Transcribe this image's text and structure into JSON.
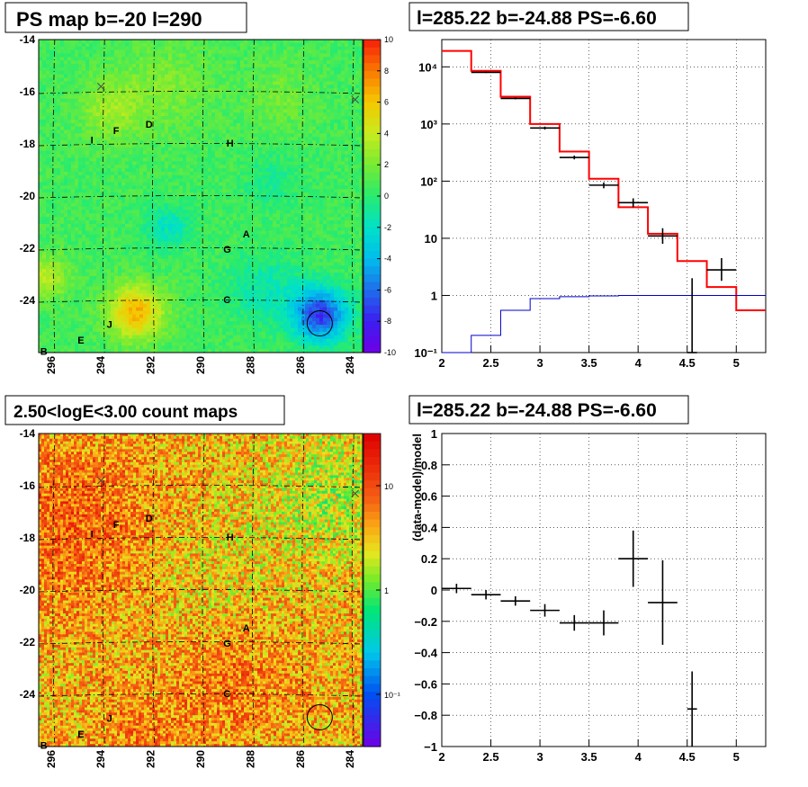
{
  "panels": {
    "ps_map": {
      "title": "PS map b=-20 l=290",
      "colorbar_ticks": [
        "10",
        "8",
        "6",
        "4",
        "2",
        "0",
        "-2",
        "-4",
        "-6",
        "-8",
        "-10"
      ],
      "y_ticks": [
        "-14",
        "-16",
        "-18",
        "-20",
        "-22",
        "-24"
      ],
      "x_ticks": [
        "296",
        "294",
        "292",
        "290",
        "288",
        "286",
        "284"
      ]
    },
    "spectrum": {
      "title": "l=285.22 b=-24.88 PS=-6.60"
    },
    "count_map": {
      "title": "2.50<logE<3.00 count maps",
      "colorbar_ticks": [
        "10",
        "1",
        "10⁻¹"
      ],
      "y_ticks": [
        "-14",
        "-16",
        "-18",
        "-20",
        "-22",
        "-24"
      ],
      "x_ticks": [
        "296",
        "294",
        "292",
        "290",
        "288",
        "286",
        "284"
      ]
    },
    "residual": {
      "title": "l=285.22 b=-24.88 PS=-6.60"
    }
  },
  "source_labels": [
    "A",
    "B",
    "C",
    "D",
    "E",
    "F",
    "G",
    "H",
    "I",
    "J"
  ],
  "colors": {
    "model": "#ff0000",
    "background": "#0000cc",
    "data": "#000000"
  },
  "chart_data": [
    {
      "type": "heatmap",
      "name": "PS map",
      "title": "PS map b=-20 l=290",
      "xlim": [
        296.5,
        283.5
      ],
      "ylim": [
        -26,
        -14
      ],
      "zlim": [
        -10,
        10
      ],
      "xlabel": "",
      "ylabel": ""
    },
    {
      "type": "line",
      "title": "l=285.22 b=-24.88 PS=-6.60",
      "xlim": [
        2,
        5.3
      ],
      "ylim": [
        0.1,
        30000
      ],
      "yscale": "log",
      "series": [
        {
          "style": "step",
          "edges": [
            2,
            2.3,
            2.6,
            2.9,
            3.2,
            3.5,
            3.8,
            4.1,
            4.4,
            4.7,
            5.0,
            5.3
          ],
          "values": [
            19000,
            8500,
            3000,
            1000,
            330,
            110,
            35,
            12,
            4,
            1.4,
            0.55
          ]
        },
        {
          "style": "step",
          "edges": [
            2,
            2.3,
            2.6,
            2.9,
            3.2,
            3.5,
            3.8,
            4.1,
            4.4,
            4.7,
            5.0,
            5.3
          ],
          "values": [
            0.1,
            0.2,
            0.55,
            0.88,
            0.95,
            0.98,
            1.0,
            1.0,
            1.0,
            1.0,
            1.0
          ]
        },
        {
          "style": "points",
          "x": [
            2.45,
            2.75,
            3.05,
            3.35,
            3.65,
            3.95,
            4.25,
            4.55,
            4.85
          ],
          "xerr": [
            0.15,
            0.15,
            0.15,
            0.15,
            0.15,
            0.15,
            0.15,
            0.05,
            0.15
          ],
          "y": [
            8000,
            2800,
            850,
            260,
            85,
            42,
            11,
            0.1,
            2.8
          ],
          "ylo": [
            7800,
            2700,
            800,
            240,
            75,
            35,
            8,
            0.1,
            1.8
          ],
          "yhi": [
            8200,
            2900,
            900,
            280,
            95,
            50,
            15,
            2,
            4.5
          ]
        }
      ]
    },
    {
      "type": "heatmap",
      "name": "count map",
      "title": "2.50<logE<3.00 count maps",
      "xlim": [
        296.5,
        283.5
      ],
      "ylim": [
        -26,
        -14
      ],
      "zscale": "log",
      "zlim": [
        0.03,
        30
      ]
    },
    {
      "type": "scatter",
      "title": "l=285.22 b=-24.88 PS=-6.60",
      "ylabel": "(data-model)/model",
      "xlim": [
        2,
        5.3
      ],
      "ylim": [
        -1,
        1
      ],
      "x": [
        2.15,
        2.45,
        2.75,
        3.05,
        3.35,
        3.65,
        3.95,
        4.25,
        4.55
      ],
      "xerr": [
        0.15,
        0.15,
        0.15,
        0.15,
        0.15,
        0.15,
        0.15,
        0.15,
        0.05
      ],
      "y": [
        0.01,
        -0.03,
        -0.07,
        -0.13,
        -0.21,
        -0.21,
        0.2,
        -0.08,
        -0.76
      ],
      "yerr": [
        0.03,
        0.03,
        0.03,
        0.04,
        0.05,
        0.08,
        0.18,
        0.27,
        0.24
      ]
    }
  ]
}
